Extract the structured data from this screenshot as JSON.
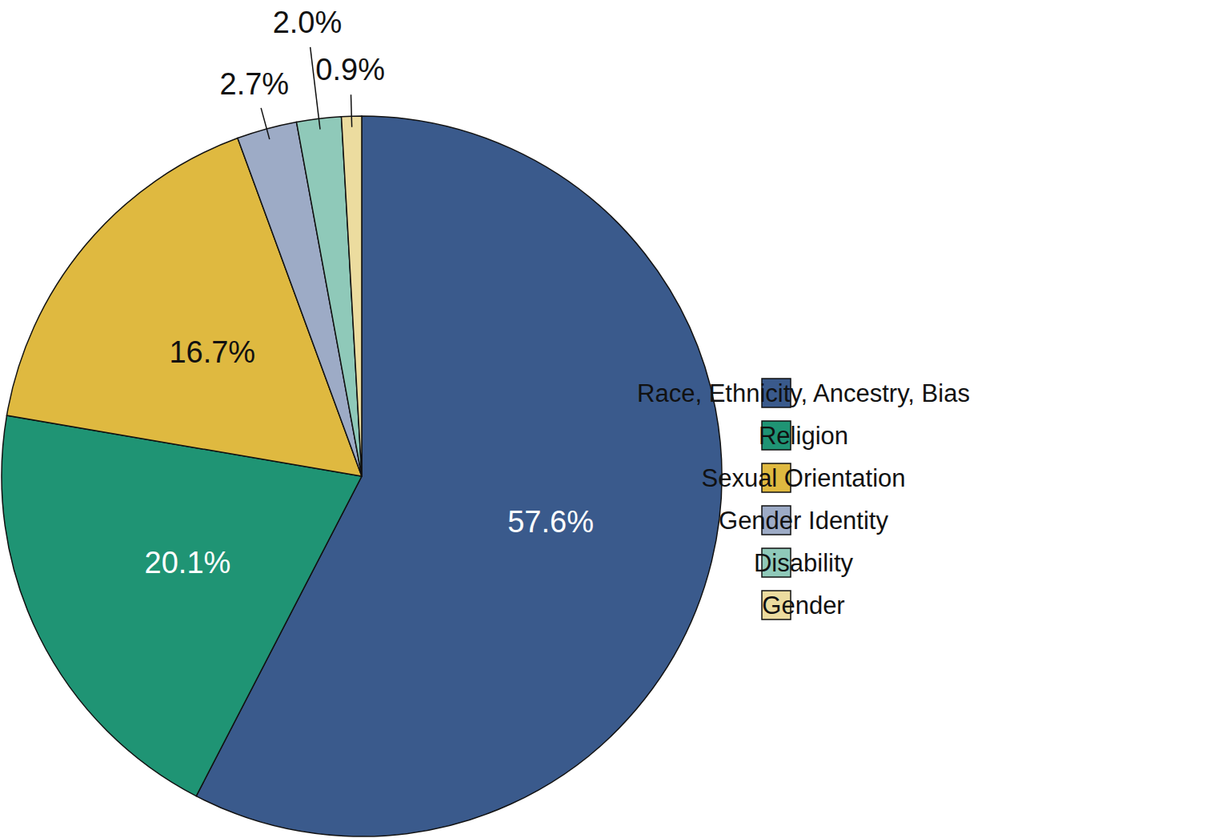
{
  "chart_data": {
    "type": "pie",
    "categories": [
      "Race, Ethnicity, Ancestry, Bias",
      "Religion",
      "Sexual Orientation",
      "Gender Identity",
      "Disability",
      "Gender"
    ],
    "values": [
      57.6,
      20.1,
      16.7,
      2.7,
      2.0,
      0.9
    ],
    "value_labels": [
      "57.6%",
      "20.1%",
      "16.7%",
      "2.7%",
      "2.0%",
      "0.9%"
    ],
    "colors": [
      "#3a5a8c",
      "#1f9474",
      "#dfb940",
      "#9dabc6",
      "#8fc9b9",
      "#ecdc9f"
    ],
    "data_labels": true,
    "legend": "right"
  }
}
